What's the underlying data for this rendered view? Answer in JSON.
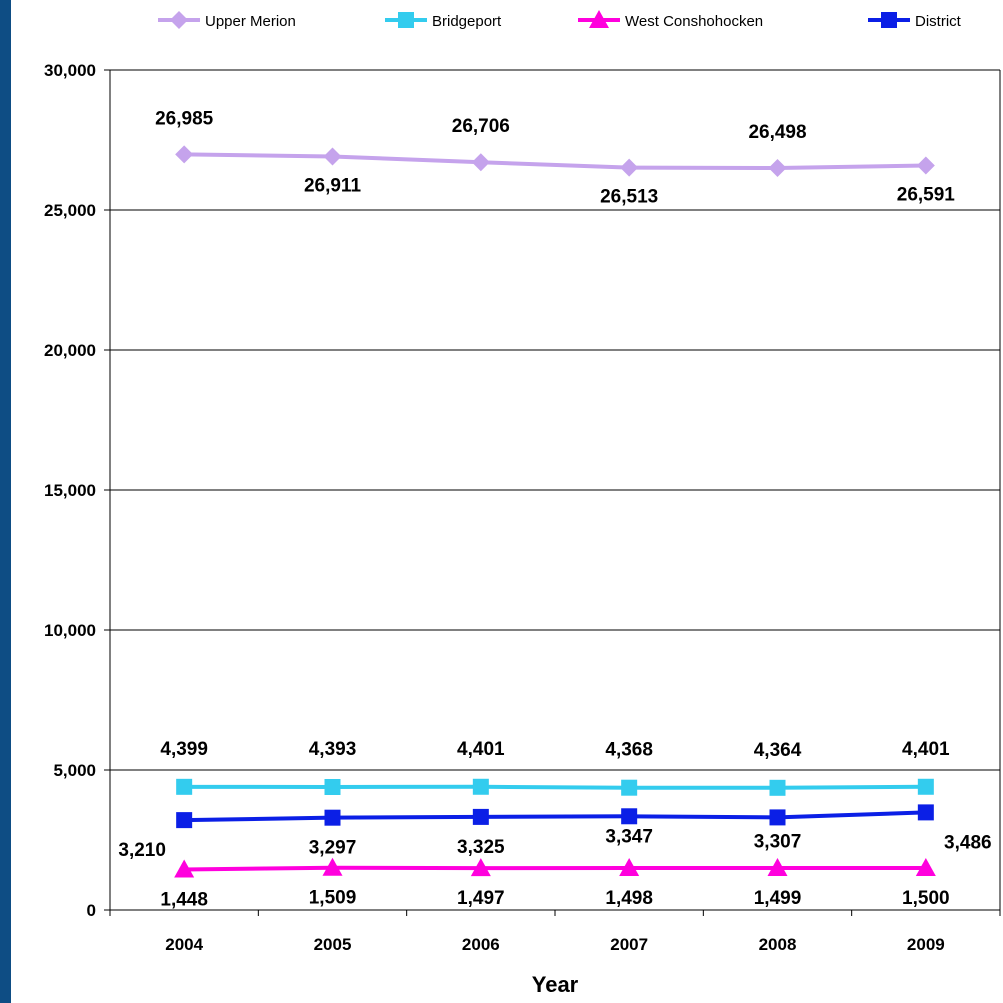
{
  "chart_data": {
    "type": "line",
    "title": "",
    "xlabel": "Year",
    "ylabel": "",
    "categories": [
      "2004",
      "2005",
      "2006",
      "2007",
      "2008",
      "2009"
    ],
    "ylim": [
      0,
      30000
    ],
    "yticks": [
      0,
      5000,
      10000,
      15000,
      20000,
      25000,
      30000
    ],
    "ytick_labels": [
      "0",
      "5,000",
      "10,000",
      "15,000",
      "20,000",
      "25,000",
      "30,000"
    ],
    "grid": "horizontal",
    "legend_position": "top",
    "series": [
      {
        "name": "Upper Merion",
        "color": "#c5a3ec",
        "marker": "diamond",
        "values": [
          26985,
          26911,
          26706,
          26513,
          26498,
          26591
        ],
        "labels": [
          "26,985",
          "26,911",
          "26,706",
          "26,513",
          "26,498",
          "26,591"
        ]
      },
      {
        "name": "Bridgeport",
        "color": "#33ccee",
        "marker": "square",
        "values": [
          4399,
          4393,
          4401,
          4368,
          4364,
          4401
        ],
        "labels": [
          "4,399",
          "4,393",
          "4,401",
          "4,368",
          "4,364",
          "4,401"
        ]
      },
      {
        "name": "West Conshohocken",
        "color": "#ff00dd",
        "marker": "triangle",
        "values": [
          1448,
          1509,
          1497,
          1498,
          1499,
          1500
        ],
        "labels": [
          "1,448",
          "1,509",
          "1,497",
          "1,498",
          "1,499",
          "1,500"
        ]
      },
      {
        "name": "District",
        "color": "#0b1fe6",
        "marker": "square",
        "values": [
          3210,
          3297,
          3325,
          3347,
          3307,
          3486
        ],
        "labels": [
          "3,210",
          "3,297",
          "3,325",
          "3,347",
          "3,307",
          "3,486"
        ]
      }
    ]
  }
}
